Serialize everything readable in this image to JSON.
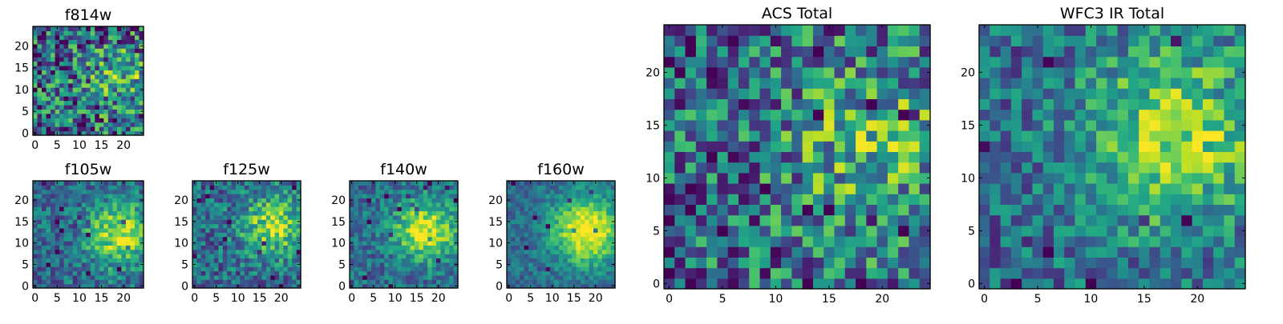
{
  "figure": {
    "colormap": "viridis",
    "grid": false,
    "legend": "none"
  },
  "chart_data": [
    {
      "type": "heatmap",
      "title": "f814w",
      "xticks": [
        0,
        5,
        10,
        15,
        20
      ],
      "yticks": [
        0,
        5,
        10,
        15,
        20
      ],
      "xlim": [
        0,
        25
      ],
      "ylim": [
        0,
        25
      ],
      "grid_size": [
        25,
        25
      ],
      "blob_center": [
        19,
        12
      ],
      "blob_radius": 5,
      "blob_strength": 0.3,
      "noise_level": 0.85,
      "seed": 11
    },
    {
      "type": "heatmap",
      "title": "f105w",
      "xticks": [
        0,
        5,
        10,
        15,
        20
      ],
      "yticks": [
        0,
        5,
        10,
        15,
        20
      ],
      "xlim": [
        0,
        25
      ],
      "ylim": [
        0,
        25
      ],
      "grid_size": [
        25,
        25
      ],
      "blob_center": [
        19,
        12
      ],
      "blob_radius": 5,
      "blob_strength": 0.55,
      "noise_level": 0.45,
      "seed": 23
    },
    {
      "type": "heatmap",
      "title": "f125w",
      "xticks": [
        0,
        5,
        10,
        15,
        20
      ],
      "yticks": [
        0,
        5,
        10,
        15,
        20
      ],
      "xlim": [
        0,
        25
      ],
      "ylim": [
        0,
        25
      ],
      "grid_size": [
        25,
        25
      ],
      "blob_center": [
        18,
        14
      ],
      "blob_radius": 5,
      "blob_strength": 0.5,
      "noise_level": 0.5,
      "seed": 37
    },
    {
      "type": "heatmap",
      "title": "f140w",
      "xticks": [
        0,
        5,
        10,
        15,
        20
      ],
      "yticks": [
        0,
        5,
        10,
        15,
        20
      ],
      "xlim": [
        0,
        25
      ],
      "ylim": [
        0,
        25
      ],
      "grid_size": [
        25,
        25
      ],
      "blob_center": [
        17,
        13
      ],
      "blob_radius": 5,
      "blob_strength": 0.6,
      "noise_level": 0.4,
      "seed": 41
    },
    {
      "type": "heatmap",
      "title": "f160w",
      "xticks": [
        0,
        5,
        10,
        15,
        20
      ],
      "yticks": [
        0,
        5,
        10,
        15,
        20
      ],
      "xlim": [
        0,
        25
      ],
      "ylim": [
        0,
        25
      ],
      "grid_size": [
        25,
        25
      ],
      "blob_center": [
        18,
        13
      ],
      "blob_radius": 5.5,
      "blob_strength": 0.7,
      "noise_level": 0.3,
      "seed": 53
    },
    {
      "type": "heatmap",
      "title": "ACS Total",
      "xticks": [
        0,
        5,
        10,
        15,
        20
      ],
      "yticks": [
        0,
        5,
        10,
        15,
        20
      ],
      "xlim": [
        0,
        25
      ],
      "ylim": [
        0,
        25
      ],
      "grid_size": [
        25,
        25
      ],
      "blob_center": [
        19,
        13
      ],
      "blob_radius": 6,
      "blob_strength": 0.3,
      "noise_level": 0.75,
      "seed": 67
    },
    {
      "type": "heatmap",
      "title": "WFC3 IR Total",
      "xticks": [
        0,
        5,
        10,
        15,
        20
      ],
      "yticks": [
        0,
        5,
        10,
        15,
        20
      ],
      "xlim": [
        0,
        25
      ],
      "ylim": [
        0,
        25
      ],
      "grid_size": [
        25,
        25
      ],
      "blob_center": [
        18,
        14
      ],
      "blob_radius": 6,
      "blob_strength": 0.5,
      "noise_level": 0.5,
      "seed": 79
    }
  ]
}
